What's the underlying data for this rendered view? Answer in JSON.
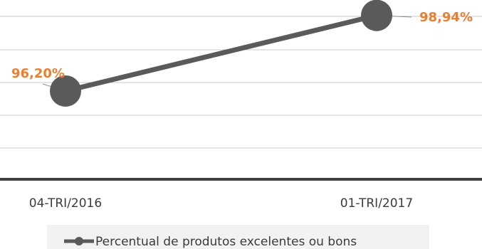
{
  "chart_data": {
    "type": "line",
    "categories": [
      "04-TRI/2016",
      "01-TRI/2017"
    ],
    "series": [
      {
        "name": "Percentual de produtos excelentes ou bons",
        "values": [
          96.2,
          98.94
        ],
        "value_labels": [
          "96,20%",
          "98,94%"
        ]
      }
    ],
    "ylim": [
      93.0,
      99.5
    ],
    "grid": true,
    "legend_position": "bottom",
    "colors": {
      "line": "#5a5a5a",
      "marker": "#5a5a5a",
      "data_label": "#ed7d31",
      "gridline": "#c8c8c8",
      "axis": "#3f3f3f",
      "legend_bg": "#f2f2f2"
    }
  }
}
